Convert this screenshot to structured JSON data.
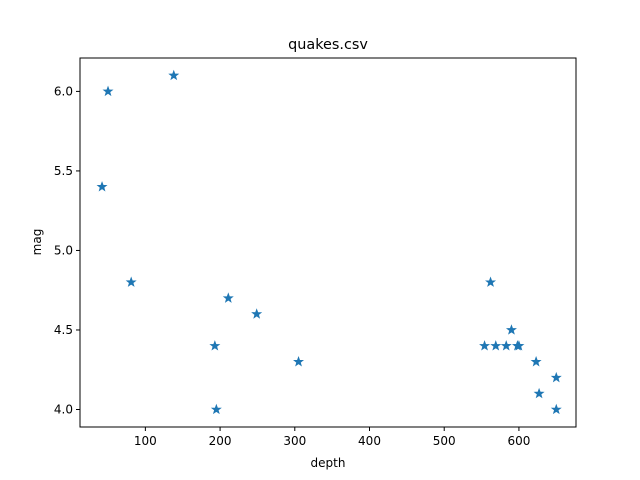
{
  "chart_data": {
    "type": "scatter",
    "title": "quakes.csv",
    "xlabel": "depth",
    "ylabel": "mag",
    "xlim": [
      12.5,
      676.4
    ],
    "ylim": [
      3.89,
      6.21
    ],
    "grid": false,
    "marker": "star",
    "color": "#1f77b4",
    "xticks": [
      100,
      200,
      300,
      400,
      500,
      600
    ],
    "xtick_labels": [
      "100",
      "200",
      "300",
      "400",
      "500",
      "600"
    ],
    "yticks": [
      4.0,
      4.5,
      5.0,
      5.5,
      6.0
    ],
    "ytick_labels": [
      "4.0",
      "4.5",
      "5.0",
      "5.5",
      "6.0"
    ],
    "points": [
      {
        "x": 42,
        "y": 5.4
      },
      {
        "x": 50,
        "y": 6.0
      },
      {
        "x": 138,
        "y": 6.1
      },
      {
        "x": 81,
        "y": 4.8
      },
      {
        "x": 193,
        "y": 4.4
      },
      {
        "x": 195,
        "y": 4.0
      },
      {
        "x": 211,
        "y": 4.7
      },
      {
        "x": 249,
        "y": 4.6
      },
      {
        "x": 305,
        "y": 4.3
      },
      {
        "x": 562,
        "y": 4.8
      },
      {
        "x": 554,
        "y": 4.4
      },
      {
        "x": 569,
        "y": 4.4
      },
      {
        "x": 583,
        "y": 4.4
      },
      {
        "x": 598,
        "y": 4.4
      },
      {
        "x": 600,
        "y": 4.4
      },
      {
        "x": 590,
        "y": 4.5
      },
      {
        "x": 623,
        "y": 4.3
      },
      {
        "x": 627,
        "y": 4.1
      },
      {
        "x": 650,
        "y": 4.2
      },
      {
        "x": 650,
        "y": 4.0
      }
    ]
  }
}
